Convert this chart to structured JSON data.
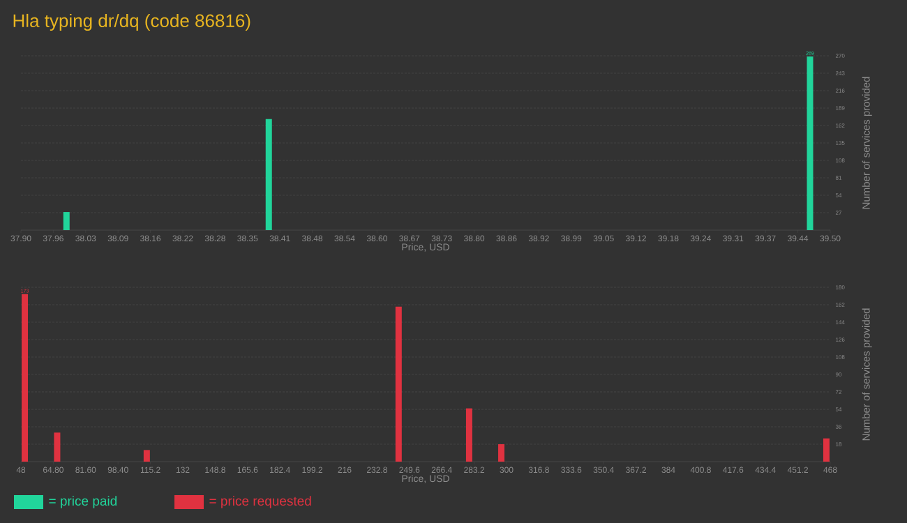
{
  "chart_data": [
    {
      "type": "bar",
      "title": "Hla typing dr/dq (code 86816)",
      "xlabel": "Price, USD",
      "ylabel": "Number of services provided",
      "x": [
        37.99,
        38.39,
        39.46
      ],
      "series": [
        {
          "name": "= price paid",
          "color": "#21d59b",
          "values": [
            28,
            172,
            269
          ],
          "value_labels": [
            null,
            null,
            "269"
          ]
        }
      ],
      "xlim": [
        37.9,
        39.5
      ],
      "xticks": [
        {
          "value": 37.9,
          "label": "37.90"
        },
        {
          "value": 37.964,
          "label": "37.96"
        },
        {
          "value": 38.028,
          "label": "38.03"
        },
        {
          "value": 38.092,
          "label": "38.09"
        },
        {
          "value": 38.156,
          "label": "38.16"
        },
        38.22,
        {
          "value": 38.284,
          "label": "38.28"
        },
        {
          "value": 38.348,
          "label": "38.35"
        },
        {
          "value": 38.412,
          "label": "38.41"
        },
        {
          "value": 38.476,
          "label": "38.48"
        },
        38.54,
        {
          "value": 38.604,
          "label": "38.60"
        },
        {
          "value": 38.668,
          "label": "38.67"
        },
        {
          "value": 38.732,
          "label": "38.73"
        },
        {
          "value": 38.796,
          "label": "38.80"
        },
        38.86,
        {
          "value": 38.924,
          "label": "38.92"
        },
        {
          "value": 38.988,
          "label": "38.99"
        },
        {
          "value": 39.052,
          "label": "39.05"
        },
        {
          "value": 39.116,
          "label": "39.12"
        },
        39.18,
        {
          "value": 39.244,
          "label": "39.24"
        },
        {
          "value": 39.308,
          "label": "39.31"
        },
        {
          "value": 39.372,
          "label": "39.37"
        },
        {
          "value": 39.436,
          "label": "39.44"
        },
        {
          "value": 39.5,
          "label": "39.50"
        }
      ],
      "ylim": [
        0,
        270
      ],
      "yticks": [
        27,
        54,
        81,
        108,
        135,
        162,
        189,
        216,
        243,
        270
      ],
      "grid": "y",
      "legend": "bottom left"
    },
    {
      "type": "bar",
      "xlabel": "Price, USD",
      "ylabel": "Number of services provided",
      "x": [
        50,
        66.8,
        113.3,
        244,
        280.6,
        297.3,
        466
      ],
      "series": [
        {
          "name": "= price requested",
          "color": "#e03240",
          "values": [
            173,
            30,
            12,
            160,
            55,
            18,
            24
          ],
          "value_labels": [
            "173",
            null,
            null,
            null,
            null,
            null,
            null
          ]
        }
      ],
      "xlim": [
        48,
        468
      ],
      "xticks": [
        48,
        {
          "value": 64.8,
          "label": "64.80"
        },
        {
          "value": 81.6,
          "label": "81.60"
        },
        {
          "value": 98.4,
          "label": "98.40"
        },
        115.2,
        132,
        148.8,
        165.6,
        182.4,
        199.2,
        216,
        232.8,
        249.6,
        266.4,
        283.2,
        300,
        316.8,
        333.6,
        350.4,
        367.2,
        384,
        400.8,
        417.6,
        434.4,
        451.2,
        468
      ],
      "ylim": [
        0,
        180
      ],
      "yticks": [
        18,
        36,
        54,
        72,
        90,
        108,
        126,
        144,
        162,
        180
      ],
      "grid": "y",
      "legend": "bottom left"
    }
  ]
}
